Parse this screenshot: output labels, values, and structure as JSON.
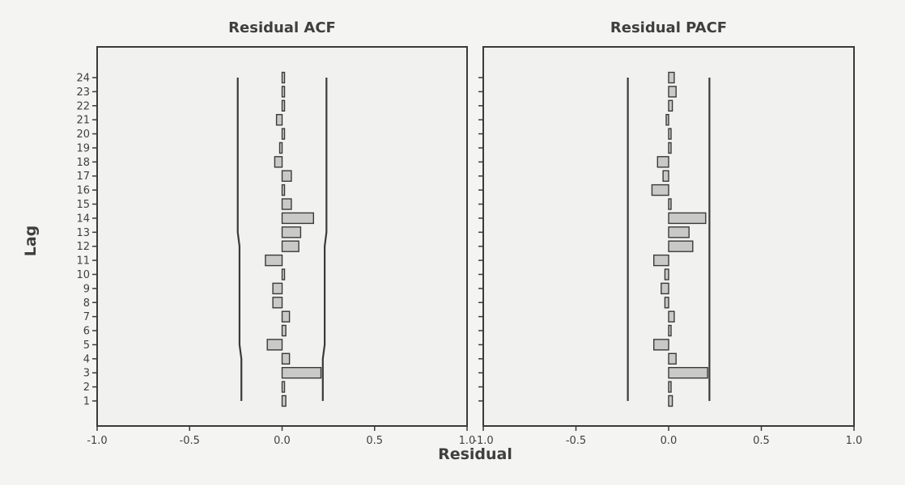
{
  "figure": {
    "ylabel": "Lag",
    "xlabel": "Residual"
  },
  "chart_data": [
    {
      "type": "bar",
      "title": "Residual ACF",
      "ylabel": "Lag",
      "xlabel": "Residual",
      "xlim": [
        -1.0,
        1.0
      ],
      "xticks": [
        "-1.0",
        "-0.5",
        "0.0",
        "0.5",
        "1.0"
      ],
      "categories": [
        "1",
        "2",
        "3",
        "4",
        "5",
        "6",
        "7",
        "8",
        "9",
        "10",
        "11",
        "12",
        "13",
        "14",
        "15",
        "16",
        "17",
        "18",
        "19",
        "20",
        "21",
        "22",
        "23",
        "24"
      ],
      "values": [
        0.02,
        0.01,
        0.21,
        0.04,
        -0.08,
        0.02,
        0.04,
        -0.05,
        -0.05,
        0.0,
        -0.09,
        0.09,
        0.1,
        0.17,
        0.05,
        0.0,
        0.05,
        -0.04,
        -0.01,
        0.0,
        -0.03,
        0.01,
        0.01,
        0.0
      ],
      "confidence_upper": [
        0.22,
        0.22,
        0.22,
        0.22,
        0.23,
        0.23,
        0.23,
        0.23,
        0.23,
        0.23,
        0.23,
        0.23,
        0.24,
        0.24,
        0.24,
        0.24,
        0.24,
        0.24,
        0.24,
        0.24,
        0.24,
        0.24,
        0.24,
        0.24
      ],
      "confidence_lower": [
        -0.22,
        -0.22,
        -0.22,
        -0.22,
        -0.23,
        -0.23,
        -0.23,
        -0.23,
        -0.23,
        -0.23,
        -0.23,
        -0.23,
        -0.24,
        -0.24,
        -0.24,
        -0.24,
        -0.24,
        -0.24,
        -0.24,
        -0.24,
        -0.24,
        -0.24,
        -0.24,
        -0.24
      ]
    },
    {
      "type": "bar",
      "title": "Residual PACF",
      "ylabel": "Lag",
      "xlabel": "Residual",
      "xlim": [
        -1.0,
        1.0
      ],
      "xticks": [
        "-1.0",
        "-0.5",
        "0.0",
        "0.5",
        "1.0"
      ],
      "categories": [
        "1",
        "2",
        "3",
        "4",
        "5",
        "6",
        "7",
        "8",
        "9",
        "10",
        "11",
        "12",
        "13",
        "14",
        "15",
        "16",
        "17",
        "18",
        "19",
        "20",
        "21",
        "22",
        "23",
        "24"
      ],
      "values": [
        0.02,
        0.01,
        0.21,
        0.04,
        -0.08,
        0.01,
        0.03,
        -0.02,
        -0.04,
        -0.02,
        -0.08,
        0.13,
        0.11,
        0.2,
        0.01,
        -0.09,
        -0.03,
        -0.06,
        0.01,
        0.0,
        -0.01,
        0.02,
        0.04,
        0.03
      ],
      "confidence_upper": [
        0.22,
        0.22,
        0.22,
        0.22,
        0.22,
        0.22,
        0.22,
        0.22,
        0.22,
        0.22,
        0.22,
        0.22,
        0.22,
        0.22,
        0.22,
        0.22,
        0.22,
        0.22,
        0.22,
        0.22,
        0.22,
        0.22,
        0.22,
        0.22
      ],
      "confidence_lower": [
        -0.22,
        -0.22,
        -0.22,
        -0.22,
        -0.22,
        -0.22,
        -0.22,
        -0.22,
        -0.22,
        -0.22,
        -0.22,
        -0.22,
        -0.22,
        -0.22,
        -0.22,
        -0.22,
        -0.22,
        -0.22,
        -0.22,
        -0.22,
        -0.22,
        -0.22,
        -0.22,
        -0.22
      ]
    }
  ],
  "colors": {
    "bar_fill": "#c9c9c7",
    "bar_stroke": "#3a3a3a",
    "frame": "#3a3a3a",
    "text": "#3f3f3f",
    "plot_background": "#f1f1ef"
  }
}
